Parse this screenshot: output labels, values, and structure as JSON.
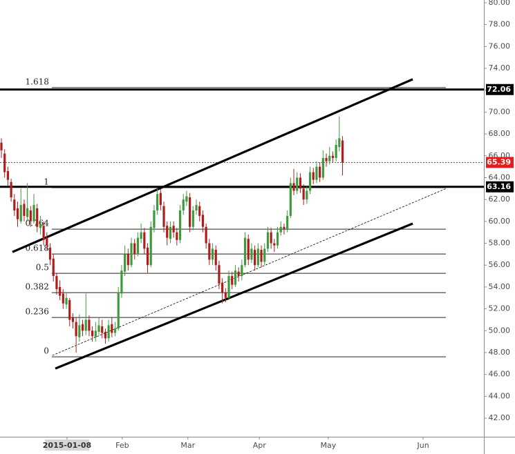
{
  "chart_data": {
    "type": "candlestick",
    "open": [
      67.2,
      66.2,
      64.6,
      63.6,
      62.0,
      61.2,
      60.0,
      61.6,
      60.4,
      61.0,
      60.0,
      61.2,
      59.4,
      59.6,
      58.5,
      57.6,
      56.6,
      55.0,
      54.0,
      53.4,
      52.4,
      52.8,
      51.2,
      50.8,
      49.4,
      50.6,
      50.0,
      51.0,
      50.0,
      49.4,
      49.9,
      50.4,
      49.9,
      49.3,
      50.6,
      49.8,
      50.2,
      53.4,
      55.4,
      57.0,
      56.0,
      58.0,
      57.0,
      58.4,
      59.0,
      57.6,
      56.0,
      59.4,
      61.0,
      62.6,
      61.4,
      59.6,
      58.4,
      59.6,
      59.0,
      58.3,
      61.0,
      61.8,
      62.2,
      59.5,
      61.0,
      61.4,
      60.6,
      59.5,
      58.0,
      56.5,
      57.4,
      56.0,
      54.4,
      53.5,
      53.0,
      55.0,
      54.2,
      55.4,
      55.0,
      56.0,
      58.4,
      56.5,
      57.4,
      56.0,
      57.4,
      56.3,
      57.5,
      59.0,
      58.0,
      57.8,
      59.0,
      59.5,
      59.3,
      60.5,
      63.5,
      62.8,
      64.0,
      63.0,
      62.0,
      62.8,
      64.5,
      63.8,
      65.0,
      64.0,
      65.8,
      65.5,
      66.0,
      65.8,
      66.8,
      67.4
    ],
    "high": [
      67.6,
      66.6,
      65.0,
      63.9,
      62.5,
      61.8,
      63.0,
      62.0,
      63.5,
      61.4,
      62.5,
      61.6,
      60.5,
      60.0,
      59.0,
      58.0,
      57.0,
      55.3,
      54.6,
      53.8,
      53.5,
      53.0,
      51.6,
      51.2,
      51.5,
      51.0,
      53.4,
      51.4,
      50.4,
      50.8,
      51.2,
      51.0,
      50.2,
      51.0,
      51.2,
      50.8,
      54.0,
      56.0,
      57.8,
      57.5,
      58.5,
      58.4,
      59.0,
      59.8,
      59.4,
      58.0,
      60.0,
      61.5,
      63.0,
      63.0,
      61.8,
      60.0,
      60.0,
      60.0,
      59.4,
      61.5,
      62.5,
      62.8,
      62.6,
      61.4,
      62.0,
      61.8,
      61.0,
      59.8,
      58.4,
      58.0,
      57.8,
      56.4,
      54.8,
      53.9,
      55.5,
      55.4,
      56.0,
      55.8,
      56.5,
      59.0,
      58.8,
      58.0,
      57.8,
      58.0,
      57.8,
      58.0,
      59.5,
      59.4,
      58.4,
      59.5,
      60.0,
      59.8,
      61.0,
      64.0,
      64.8,
      64.5,
      64.4,
      63.4,
      63.2,
      65.0,
      64.9,
      65.5,
      65.4,
      66.5,
      66.2,
      66.8,
      66.4,
      67.5,
      69.6,
      67.8
    ],
    "low": [
      65.8,
      64.0,
      63.2,
      61.8,
      60.5,
      59.5,
      59.8,
      60.0,
      60.0,
      59.5,
      59.8,
      59.0,
      58.8,
      57.8,
      57.4,
      56.0,
      54.5,
      53.3,
      52.8,
      52.0,
      52.0,
      50.4,
      50.2,
      48.0,
      49.0,
      49.5,
      49.6,
      49.5,
      49.0,
      49.0,
      49.6,
      49.3,
      48.8,
      49.0,
      49.4,
      49.5,
      50.0,
      53.0,
      55.0,
      55.5,
      55.8,
      56.5,
      56.8,
      58.0,
      57.0,
      55.3,
      55.8,
      59.0,
      60.6,
      61.0,
      59.0,
      57.8,
      58.0,
      58.5,
      57.8,
      58.0,
      60.6,
      61.4,
      59.0,
      59.2,
      60.6,
      60.0,
      59.0,
      57.5,
      56.0,
      56.0,
      55.5,
      53.8,
      52.5,
      52.6,
      52.8,
      53.8,
      54.0,
      54.5,
      54.6,
      55.8,
      56.0,
      56.2,
      55.5,
      55.8,
      55.8,
      56.0,
      57.2,
      57.5,
      57.2,
      57.5,
      58.7,
      58.8,
      59.0,
      60.3,
      62.4,
      62.5,
      62.6,
      61.5,
      61.6,
      62.5,
      63.4,
      63.5,
      63.6,
      63.8,
      65.0,
      65.2,
      65.4,
      65.5,
      66.4,
      64.2
    ],
    "close": [
      66.5,
      64.5,
      63.8,
      62.2,
      61.0,
      60.2,
      61.5,
      60.5,
      61.2,
      60.0,
      61.5,
      59.5,
      59.8,
      58.3,
      57.8,
      56.5,
      55.0,
      53.8,
      53.2,
      52.5,
      53.0,
      51.0,
      50.8,
      49.5,
      50.5,
      50.0,
      51.0,
      50.0,
      49.5,
      50.0,
      50.5,
      49.8,
      49.3,
      50.5,
      49.8,
      50.2,
      53.5,
      55.5,
      57.0,
      56.0,
      58.0,
      57.0,
      58.5,
      59.0,
      57.5,
      56.0,
      59.5,
      61.0,
      62.5,
      61.5,
      59.5,
      58.5,
      59.5,
      59.0,
      58.3,
      61.0,
      62.0,
      62.3,
      59.5,
      61.0,
      61.5,
      60.5,
      59.5,
      58.0,
      56.5,
      57.5,
      56.0,
      54.3,
      53.5,
      53.0,
      55.0,
      54.2,
      55.5,
      55.0,
      56.0,
      58.5,
      56.5,
      57.5,
      56.0,
      57.5,
      56.3,
      57.5,
      59.0,
      58.0,
      57.8,
      59.0,
      59.5,
      59.3,
      60.5,
      63.5,
      62.8,
      64.0,
      63.0,
      62.0,
      62.8,
      64.5,
      63.8,
      65.0,
      64.0,
      65.8,
      65.5,
      66.0,
      65.8,
      67.0,
      67.6,
      65.39
    ],
    "up_color": "#3d9a3d",
    "down_color": "#b01c1c",
    "ylim": [
      40.3,
      80.25
    ],
    "yticks": [
      {
        "value": 80,
        "label": "80.00"
      },
      {
        "value": 78,
        "label": "78.00"
      },
      {
        "value": 76,
        "label": "76.00"
      },
      {
        "value": 74,
        "label": "74.00"
      },
      {
        "value": 72,
        "label": "72.00"
      },
      {
        "value": 70,
        "label": "70.00"
      },
      {
        "value": 68,
        "label": "68.00"
      },
      {
        "value": 66,
        "label": "66.00"
      },
      {
        "value": 64,
        "label": "64.00"
      },
      {
        "value": 62,
        "label": "62.00"
      },
      {
        "value": 60,
        "label": "60.00"
      },
      {
        "value": 58,
        "label": "58.00"
      },
      {
        "value": 56,
        "label": "56.00"
      },
      {
        "value": 54,
        "label": "54.00"
      },
      {
        "value": 52,
        "label": "52.00"
      },
      {
        "value": 50,
        "label": "50.00"
      },
      {
        "value": 48,
        "label": "48.00"
      },
      {
        "value": 46,
        "label": "46.00"
      },
      {
        "value": 44,
        "label": "44.00"
      },
      {
        "value": 42,
        "label": "42.00"
      }
    ],
    "xlim": [
      -0.43,
      148.5
    ],
    "xticks": [
      {
        "value": 20.2,
        "label": "2015-01-08",
        "highlight": true
      },
      {
        "value": 37.2,
        "label": "Feb"
      },
      {
        "value": 57.4,
        "label": "Mar"
      },
      {
        "value": 79.4,
        "label": "Apr"
      },
      {
        "value": 100.6,
        "label": "May"
      },
      {
        "value": 129.8,
        "label": "Jun"
      }
    ],
    "price_lines": [
      {
        "value": 72.06,
        "label": "72.06",
        "color": "#000000"
      },
      {
        "value": 65.39,
        "label": "65.39",
        "color": "#e02020",
        "dotted": true
      },
      {
        "value": 63.16,
        "label": "63.16",
        "color": "#000000"
      }
    ],
    "fib_start": 15.5,
    "fib_end": 136.8,
    "fib_levels": [
      {
        "value": 72.24,
        "label": "1.618"
      },
      {
        "value": 63.08,
        "label": "1"
      },
      {
        "value": 59.29,
        "label": "0.764"
      },
      {
        "value": 57.02,
        "label": "0.618"
      },
      {
        "value": 55.25,
        "label": "0.5"
      },
      {
        "value": 53.48,
        "label": "0.382"
      },
      {
        "value": 51.21,
        "label": "0.236"
      },
      {
        "value": 47.61,
        "label": "0"
      }
    ],
    "trend_lines": [
      {
        "x": [
          3.4,
          126.6
        ],
        "y": [
          57.2,
          73.0
        ]
      },
      {
        "x": [
          16.6,
          126.6
        ],
        "y": [
          46.54,
          59.8
        ]
      },
      {
        "x": [
          15.7,
          137.0
        ],
        "y": [
          47.74,
          63.02
        ],
        "dashed": true
      }
    ]
  }
}
